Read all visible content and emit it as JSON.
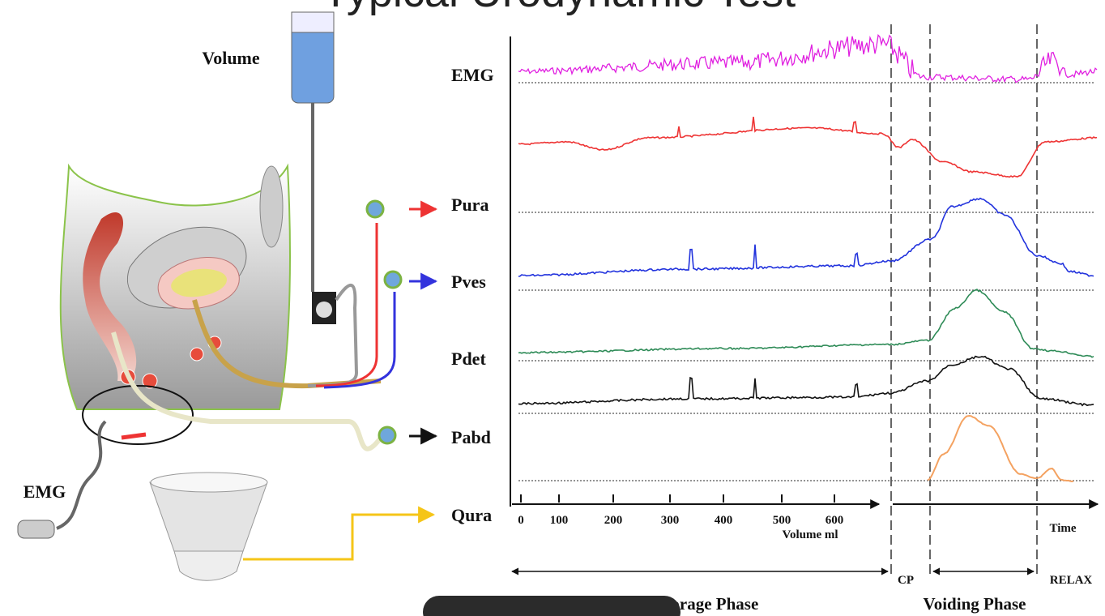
{
  "header": {
    "title": "Typical Urodynamic Test"
  },
  "illustration": {
    "volume_label": "Volume",
    "emg_label": "EMG"
  },
  "traces": {
    "emg": "EMG",
    "pura": "Pura",
    "pves": "Pves",
    "pdet": "Pdet",
    "pabd": "Pabd",
    "qura": "Qura"
  },
  "axis": {
    "volume_ticks": [
      0,
      100,
      200,
      300,
      400,
      500,
      600
    ],
    "volume_label": "Volume  ml",
    "time_label": "Time"
  },
  "phases": {
    "cp": "CP",
    "relax": "RELAX",
    "storage": "Storage Phase",
    "voiding": "Voiding Phase"
  }
}
